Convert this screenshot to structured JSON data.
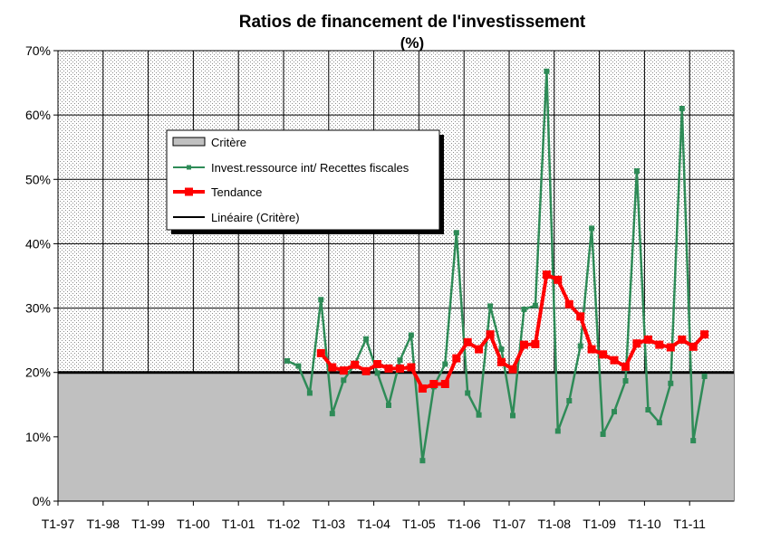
{
  "chart_data": {
    "type": "line",
    "title": "Ratios de financement de l'investissement",
    "subtitle": "(%)",
    "xlabel": "",
    "ylabel": "",
    "ylim": [
      0,
      70
    ],
    "y_ticks": [
      "0%",
      "10%",
      "20%",
      "30%",
      "40%",
      "50%",
      "60%",
      "70%"
    ],
    "y_tick_values": [
      0,
      10,
      20,
      30,
      40,
      50,
      60,
      70
    ],
    "x_tick_labels": [
      "T1-97",
      "T1-98",
      "T1-99",
      "T1-00",
      "T1-01",
      "T1-02",
      "T1-03",
      "T1-04",
      "T1-05",
      "T1-06",
      "T1-07",
      "T1-08",
      "T1-09",
      "T1-10",
      "T1-11"
    ],
    "x_start": "T1-97",
    "x_end": "T4-11",
    "grid": true,
    "legend_position": "top-left",
    "critere_value": 20,
    "legend": [
      {
        "label": "Critère",
        "key": "critere"
      },
      {
        "label": "Invest.ressource  int/ Recettes fiscales",
        "key": "invest"
      },
      {
        "label": "Tendance",
        "key": "tendance"
      },
      {
        "label": "Linéaire  (Critère)",
        "key": "lineaire"
      }
    ],
    "series": [
      {
        "name": "Invest.ressource  int/ Recettes fiscales",
        "color": "#2e8b57",
        "x": [
          "T1-02",
          "T2-02",
          "T3-02",
          "T4-02",
          "T1-03",
          "T2-03",
          "T3-03",
          "T4-03",
          "T1-04",
          "T2-04",
          "T3-04",
          "T4-04",
          "T1-05",
          "T2-05",
          "T3-05",
          "T4-05",
          "T1-06",
          "T2-06",
          "T3-06",
          "T4-06",
          "T1-07",
          "T2-07",
          "T3-07",
          "T4-07",
          "T1-08",
          "T2-08",
          "T3-08",
          "T4-08",
          "T1-09",
          "T2-09",
          "T3-09",
          "T4-09",
          "T1-10",
          "T2-10",
          "T3-10",
          "T4-10",
          "T1-11",
          "T2-11"
        ],
        "values": [
          21.8,
          21.0,
          16.8,
          31.3,
          13.6,
          18.8,
          21.3,
          25.2,
          19.9,
          14.9,
          21.9,
          25.8,
          6.3,
          17.8,
          21.3,
          41.7,
          16.8,
          13.4,
          30.3,
          23.6,
          13.3,
          29.8,
          30.4,
          66.8,
          10.9,
          15.6,
          24.1,
          42.4,
          10.4,
          13.9,
          18.7,
          51.3,
          14.2,
          12.2,
          18.3,
          61.0,
          9.4,
          19.4
        ]
      },
      {
        "name": "Tendance",
        "color": "#ff0000",
        "x": [
          "T4-02",
          "T1-03",
          "T2-03",
          "T3-03",
          "T4-03",
          "T1-04",
          "T2-04",
          "T3-04",
          "T4-04",
          "T1-05",
          "T2-05",
          "T3-05",
          "T4-05",
          "T1-06",
          "T2-06",
          "T3-06",
          "T4-06",
          "T1-07",
          "T2-07",
          "T3-07",
          "T4-07",
          "T1-08",
          "T2-08",
          "T3-08",
          "T4-08",
          "T1-09",
          "T2-09",
          "T3-09",
          "T4-09",
          "T1-10",
          "T2-10",
          "T3-10",
          "T4-10",
          "T1-11",
          "T2-11"
        ],
        "values": [
          23.0,
          20.8,
          20.3,
          21.2,
          20.2,
          21.3,
          20.6,
          20.6,
          20.8,
          17.5,
          18.2,
          18.2,
          22.2,
          24.7,
          23.6,
          25.9,
          21.6,
          20.5,
          24.3,
          24.4,
          35.2,
          34.4,
          30.6,
          28.7,
          23.6,
          22.8,
          21.9,
          20.9,
          24.5,
          25.1,
          24.3,
          23.9,
          25.1,
          24.0,
          25.9
        ]
      }
    ]
  }
}
